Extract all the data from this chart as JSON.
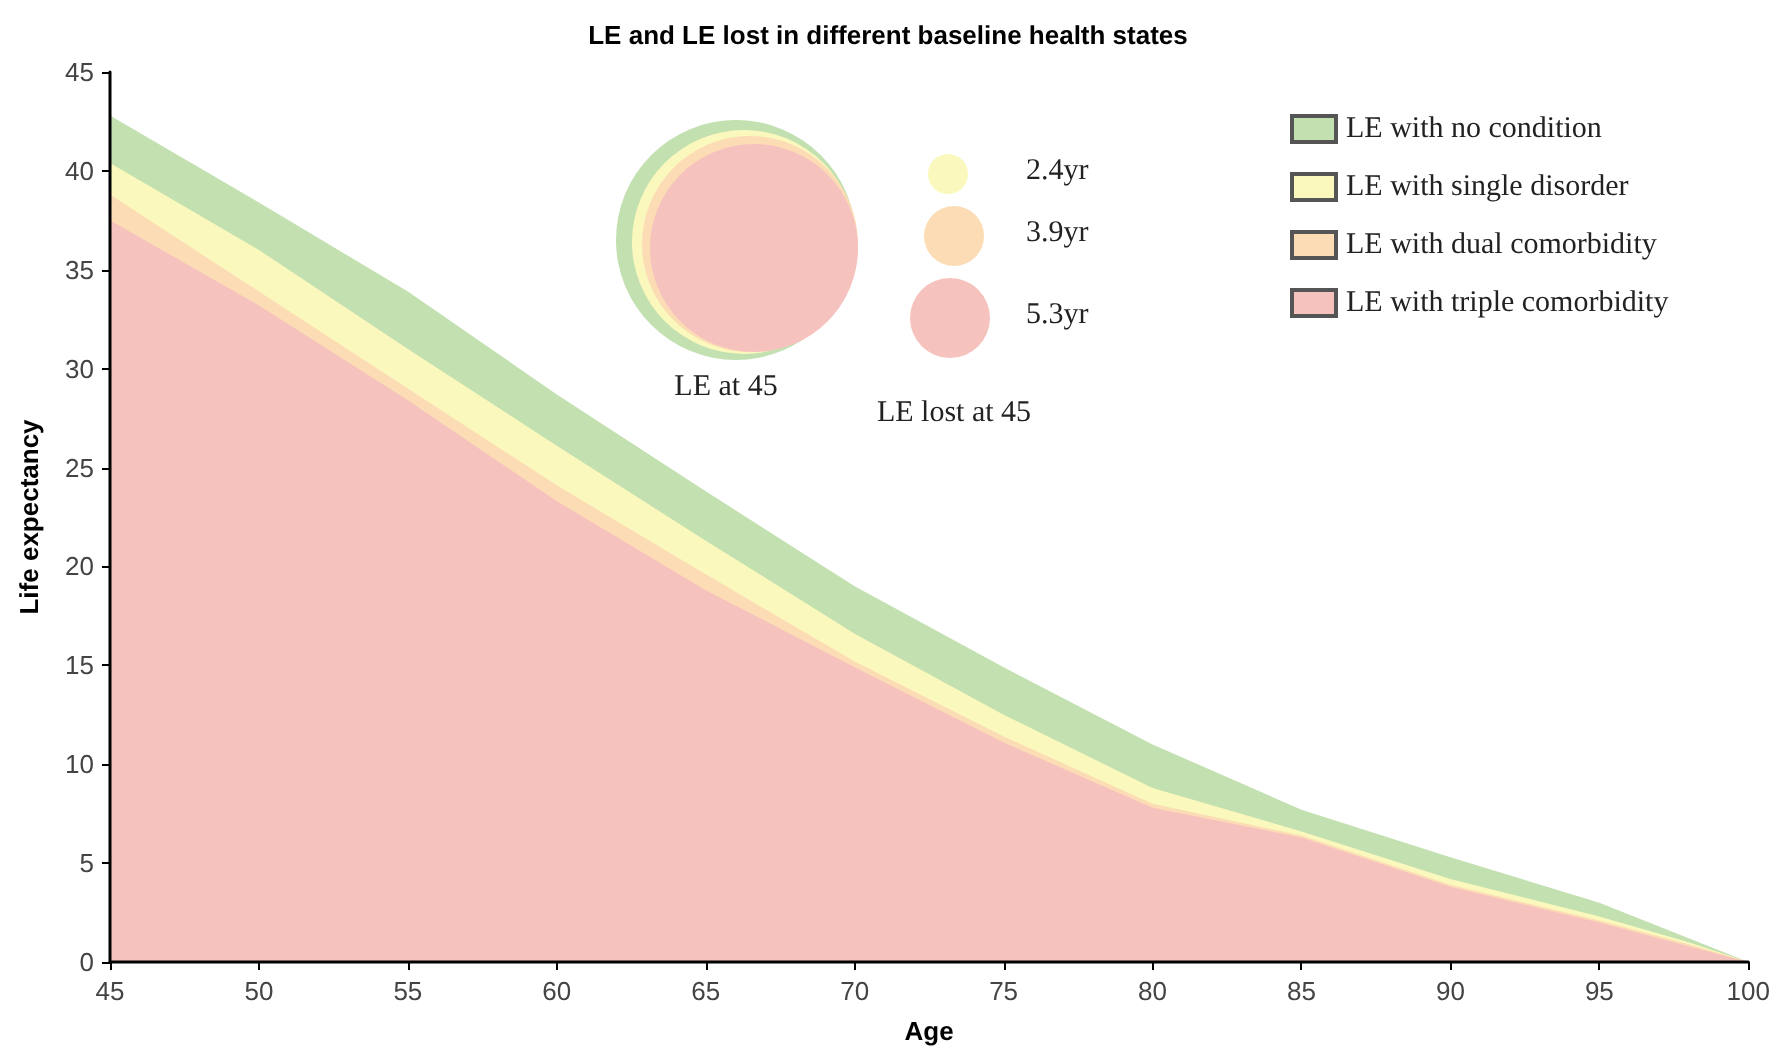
{
  "chart_data": {
    "type": "area",
    "title": "LE and LE lost in different baseline health states",
    "xlabel": "Age",
    "ylabel": "Life expectancy",
    "x": [
      45,
      50,
      55,
      60,
      65,
      70,
      75,
      80,
      85,
      90,
      95,
      98,
      100
    ],
    "series": [
      {
        "name": "LE with no condition",
        "color": "#c3e0b0",
        "values": [
          42.8,
          38.4,
          33.9,
          28.7,
          23.8,
          19.0,
          14.9,
          11.0,
          7.7,
          5.3,
          3.0,
          1.2,
          0
        ]
      },
      {
        "name": "LE with single disorder",
        "color": "#fbf8bd",
        "values": [
          40.4,
          36.0,
          31.0,
          26.1,
          21.3,
          16.6,
          12.5,
          8.8,
          6.6,
          4.2,
          2.3,
          1.0,
          0
        ]
      },
      {
        "name": "LE with dual comorbidity",
        "color": "#fcdcb5",
        "values": [
          38.8,
          33.9,
          29.0,
          24.1,
          19.6,
          15.2,
          11.4,
          8.0,
          6.4,
          3.9,
          2.1,
          0.9,
          0
        ]
      },
      {
        "name": "LE with triple comorbidity",
        "color": "#f6c2bd",
        "values": [
          37.5,
          33.2,
          28.4,
          23.3,
          18.8,
          14.9,
          11.1,
          7.8,
          6.3,
          3.8,
          2.0,
          0.8,
          0
        ]
      }
    ],
    "annotations": [
      "2.4yr",
      "3.9yr",
      "5.3yr",
      "LE at 45",
      "LE lost at 45"
    ],
    "xlim": [
      45,
      100
    ],
    "xticks": [
      45,
      50,
      55,
      60,
      65,
      70,
      75,
      80,
      85,
      90,
      95,
      100
    ],
    "ylim": [
      0,
      45
    ],
    "yticks": [
      0,
      5,
      10,
      15,
      20,
      25,
      30,
      35,
      40,
      45
    ],
    "grid": false,
    "legend": "top right",
    "marker": "none"
  }
}
